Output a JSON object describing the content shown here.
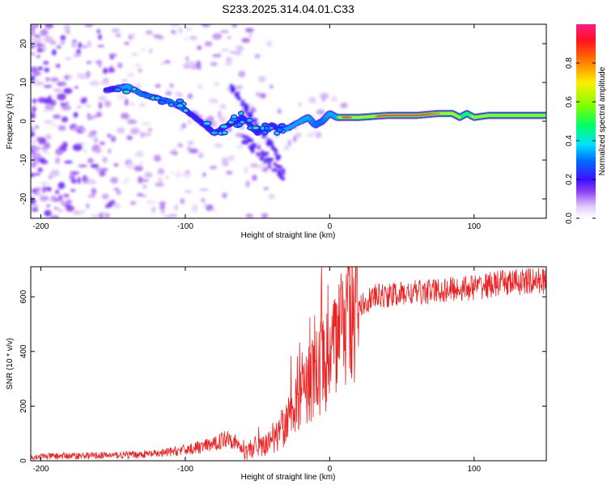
{
  "title": "S233.2025.314.04.01.C33",
  "chart_data": [
    {
      "type": "heatmap",
      "xlabel": "Height of straight line (km)",
      "ylabel": "Frequency (Hz)",
      "xlim": [
        -207,
        150
      ],
      "ylim": [
        -25,
        25
      ],
      "xticks": [
        "-200",
        "-100",
        "0",
        "100"
      ],
      "yticks": [
        "-20",
        "-10",
        "0",
        "10",
        "20"
      ],
      "colorbar": {
        "label": "Normalized spectral amplitude",
        "range": [
          0,
          1
        ],
        "ticks": [
          "0.0",
          "0.2",
          "0.4",
          "0.6",
          "0.8"
        ]
      },
      "ridge": {
        "x": [
          -155,
          -140,
          -130,
          -120,
          -110,
          -100,
          -90,
          -80,
          -70,
          -60,
          -50,
          -40,
          -35,
          -30,
          -25,
          -20,
          -15,
          -10,
          -5,
          0,
          5,
          10,
          20,
          40,
          60,
          75,
          85,
          90,
          95,
          100,
          110,
          120,
          150
        ],
        "freq": [
          8,
          9,
          7,
          6,
          5,
          3,
          0,
          -3,
          -1,
          1,
          -3,
          -1,
          -2,
          -2,
          -1,
          0,
          1,
          -1,
          0,
          2,
          1,
          1,
          1,
          1.5,
          1.5,
          2,
          2,
          1,
          2,
          1,
          1.5,
          1.5,
          1.5
        ],
        "amplitude": [
          0.25,
          0.35,
          0.3,
          0.3,
          0.3,
          0.3,
          0.25,
          0.25,
          0.2,
          0.25,
          0.25,
          0.25,
          0.3,
          0.35,
          0.35,
          0.4,
          0.35,
          0.3,
          0.3,
          0.35,
          0.45,
          0.95,
          0.6,
          0.95,
          0.9,
          0.8,
          0.7,
          0.6,
          0.5,
          0.7,
          0.6,
          0.6,
          0.6
        ]
      }
    },
    {
      "type": "line",
      "xlabel": "Height of straight line (km)",
      "ylabel": "SNR (10 * v/v)",
      "xlim": [
        -207,
        150
      ],
      "ylim": [
        0,
        710
      ],
      "xticks": [
        "-200",
        "-100",
        "0",
        "100"
      ],
      "yticks": [
        "0",
        "200",
        "400",
        "600"
      ],
      "series": [
        {
          "name": "SNR",
          "color": "#ee2222",
          "x": [
            -207,
            -180,
            -150,
            -120,
            -100,
            -80,
            -70,
            -60,
            -50,
            -40,
            -30,
            -20,
            -10,
            0,
            10,
            20,
            30,
            50,
            80,
            100,
            120,
            150
          ],
          "y": [
            15,
            18,
            20,
            25,
            40,
            60,
            90,
            40,
            50,
            80,
            130,
            230,
            320,
            380,
            470,
            560,
            600,
            610,
            625,
            635,
            650,
            660
          ]
        }
      ]
    }
  ]
}
